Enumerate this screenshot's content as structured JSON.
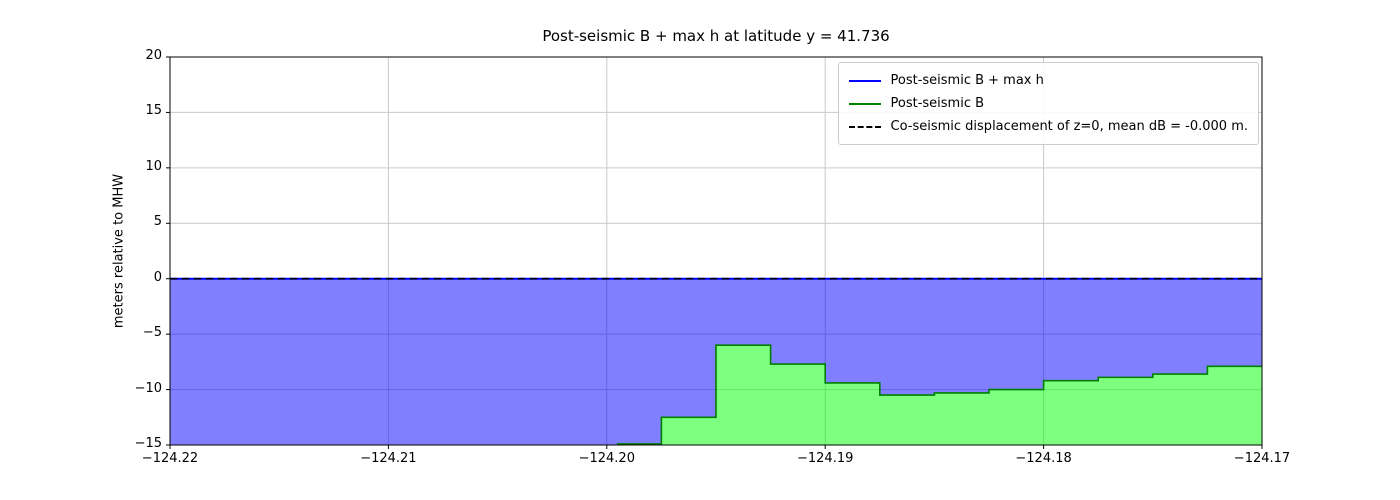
{
  "chart_data": {
    "type": "area",
    "title": "Post-seismic B + max h at latitude y = 41.736",
    "xlabel": "",
    "ylabel": "meters relative to MHW",
    "xlim": [
      -124.22,
      -124.17
    ],
    "ylim": [
      -15,
      20
    ],
    "grid": {
      "visible": true,
      "color": "#c9c9c9"
    },
    "background": "#ffffff",
    "xticks": {
      "positions": [
        -124.22,
        -124.21,
        -124.2,
        -124.19,
        -124.18,
        -124.17
      ],
      "labels": [
        "−124.22",
        "−124.21",
        "−124.20",
        "−124.19",
        "−124.18",
        "−124.17"
      ]
    },
    "yticks": {
      "positions": [
        -15,
        -10,
        -5,
        0,
        5,
        10,
        15,
        20
      ],
      "labels": [
        "−15",
        "−10",
        "−5",
        "0",
        "5",
        "10",
        "15",
        "20"
      ]
    },
    "legend": {
      "location": "upper right",
      "entries": [
        {
          "label": "Post-seismic B + max h",
          "color": "#0000ff",
          "style": "solid"
        },
        {
          "label": "Post-seismic B",
          "color": "#008000",
          "style": "solid"
        },
        {
          "label": "Co-seismic displacement of z=0, mean dB = -0.000 m.",
          "color": "#000000",
          "style": "dashed"
        }
      ]
    },
    "series": [
      {
        "name": "Post-seismic B + max h",
        "kind": "hline_with_fill_down_to_B",
        "y": 0.0,
        "line_color": "#0000ff",
        "fill_color": "rgba(0,0,255,0.5)"
      },
      {
        "name": "Post-seismic B",
        "kind": "step",
        "x_edges": [
          -124.22,
          -124.1995,
          -124.1975,
          -124.195,
          -124.1925,
          -124.19,
          -124.1875,
          -124.185,
          -124.1825,
          -124.18,
          -124.1775,
          -124.175,
          -124.1725,
          -124.17
        ],
        "values": [
          -16.0,
          -14.9,
          -12.5,
          -6.0,
          -7.7,
          -9.4,
          -10.5,
          -10.3,
          -10.0,
          -9.2,
          -8.9,
          -8.6,
          -7.9
        ],
        "line_color": "#008000",
        "fill_color": "rgba(0,255,0,0.5)"
      },
      {
        "name": "Co-seismic displacement of z=0, mean dB = -0.000 m.",
        "kind": "hline",
        "y": 0.0,
        "line_color": "#000000",
        "line_style": "dashed"
      }
    ]
  }
}
